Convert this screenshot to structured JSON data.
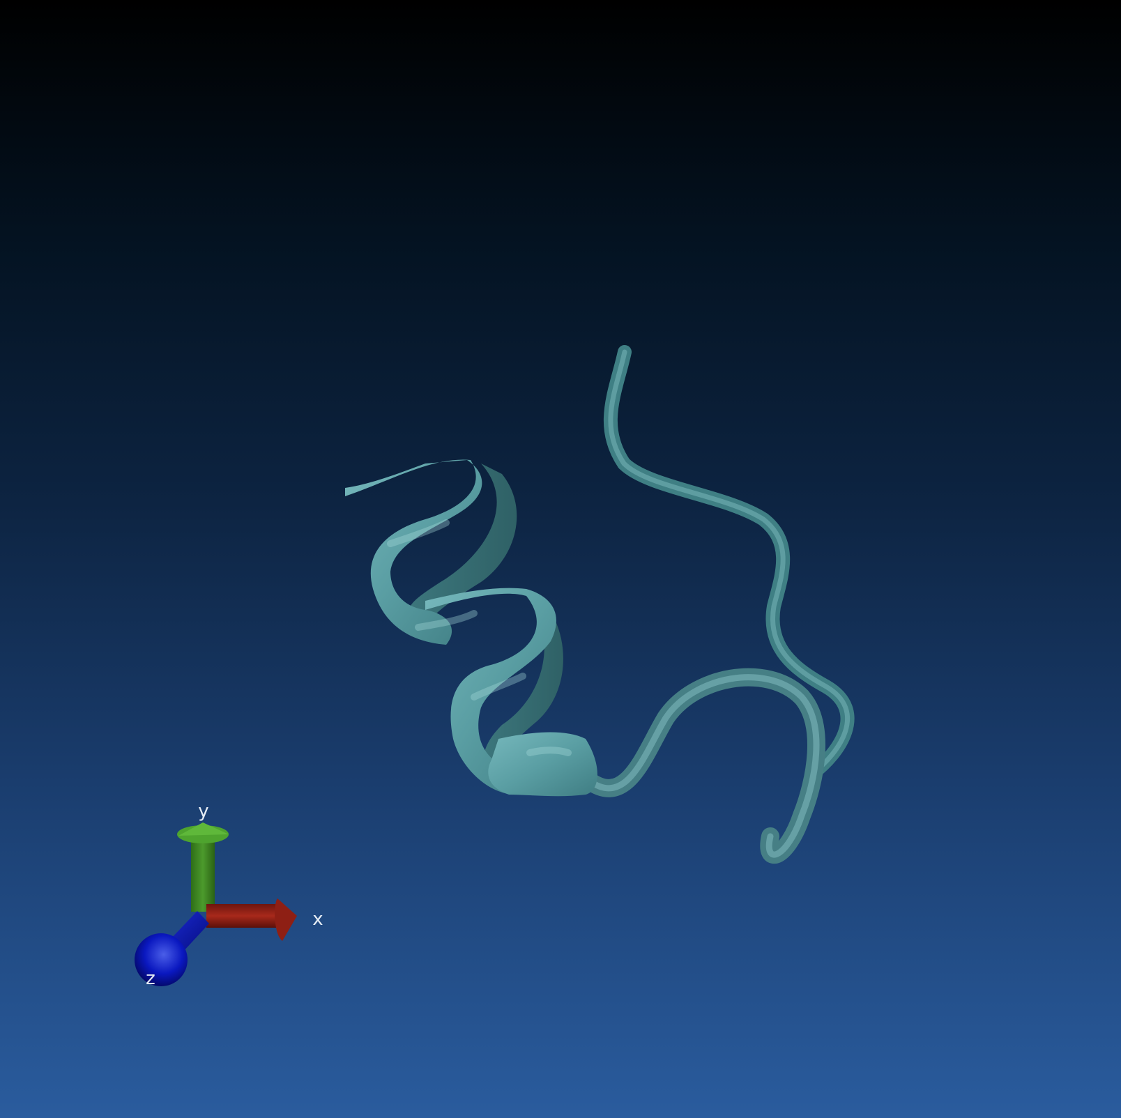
{
  "scene": {
    "view": "3d-molecular-viewer",
    "background_gradient": [
      "#000000",
      "#0d2442",
      "#2a5c9e"
    ],
    "molecule": {
      "representation": "cartoon-ribbon",
      "color": "#5fa3a8",
      "segments": [
        "alpha-helix",
        "coil"
      ]
    }
  },
  "axes": {
    "x": {
      "label": "x",
      "color": "#9a2418"
    },
    "y": {
      "label": "y",
      "color": "#3e8a24"
    },
    "z": {
      "label": "z",
      "color": "#0a16b5"
    }
  }
}
